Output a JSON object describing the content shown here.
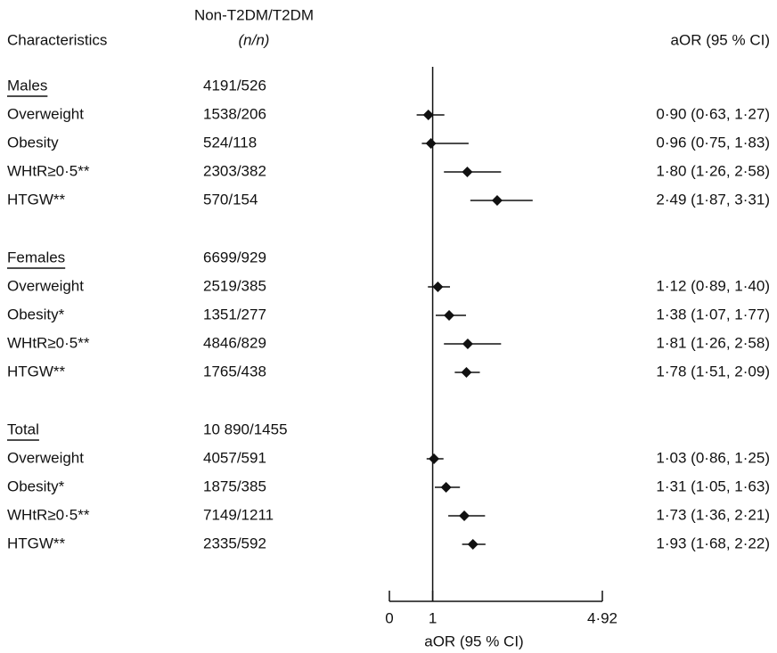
{
  "chart_data": {
    "type": "forest",
    "label_header": "Characteristics",
    "count_header": "Non-T2DM/T2DM",
    "count_subheader": "(n/n)",
    "estimate_header": "aOR (95 % CI)",
    "x_label": "aOR (95 % CI)",
    "xlim": [
      0,
      4.92
    ],
    "xticks": [
      0,
      1,
      {
        "value": 4.92,
        "label": "4·92"
      }
    ],
    "reference": 1,
    "color": "#111111",
    "groups": [
      {
        "name": "Males",
        "count": "4191/526",
        "labels": [
          "Overweight",
          "Obesity",
          "WHtR≥0·5**",
          "HTGW**"
        ],
        "counts": [
          "1538/206",
          "524/118",
          "2303/382",
          "570/154"
        ],
        "values": [
          0.9,
          0.96,
          1.8,
          2.49
        ],
        "lower": [
          0.63,
          0.75,
          1.26,
          1.87
        ],
        "upper": [
          1.27,
          1.83,
          2.58,
          3.31
        ],
        "value_labels": [
          "0·90 (0·63, 1·27)",
          "0·96 (0·75, 1·83)",
          "1·80 (1·26, 2·58)",
          "2·49 (1·87, 3·31)"
        ]
      },
      {
        "name": "Females",
        "count": "6699/929",
        "labels": [
          "Overweight",
          "Obesity*",
          "WHtR≥0·5**",
          "HTGW**"
        ],
        "counts": [
          "2519/385",
          "1351/277",
          "4846/829",
          "1765/438"
        ],
        "values": [
          1.12,
          1.38,
          1.81,
          1.78
        ],
        "lower": [
          0.89,
          1.07,
          1.26,
          1.51
        ],
        "upper": [
          1.4,
          1.77,
          2.58,
          2.09
        ],
        "value_labels": [
          "1·12 (0·89, 1·40)",
          "1·38 (1·07, 1·77)",
          "1·81 (1·26, 2·58)",
          "1·78 (1·51, 2·09)"
        ]
      },
      {
        "name": "Total",
        "count": "10 890/1455",
        "labels": [
          "Overweight",
          "Obesity*",
          "WHtR≥0·5**",
          "HTGW**"
        ],
        "counts": [
          "4057/591",
          "1875/385",
          "7149/1211",
          "2335/592"
        ],
        "values": [
          1.03,
          1.31,
          1.73,
          1.93
        ],
        "lower": [
          0.86,
          1.05,
          1.36,
          1.68
        ],
        "upper": [
          1.25,
          1.63,
          2.21,
          2.22
        ],
        "value_labels": [
          "1·03 (0·86, 1·25)",
          "1·31 (1·05, 1·63)",
          "1·73 (1·36, 2·21)",
          "1·93 (1·68, 2·22)"
        ]
      }
    ]
  }
}
